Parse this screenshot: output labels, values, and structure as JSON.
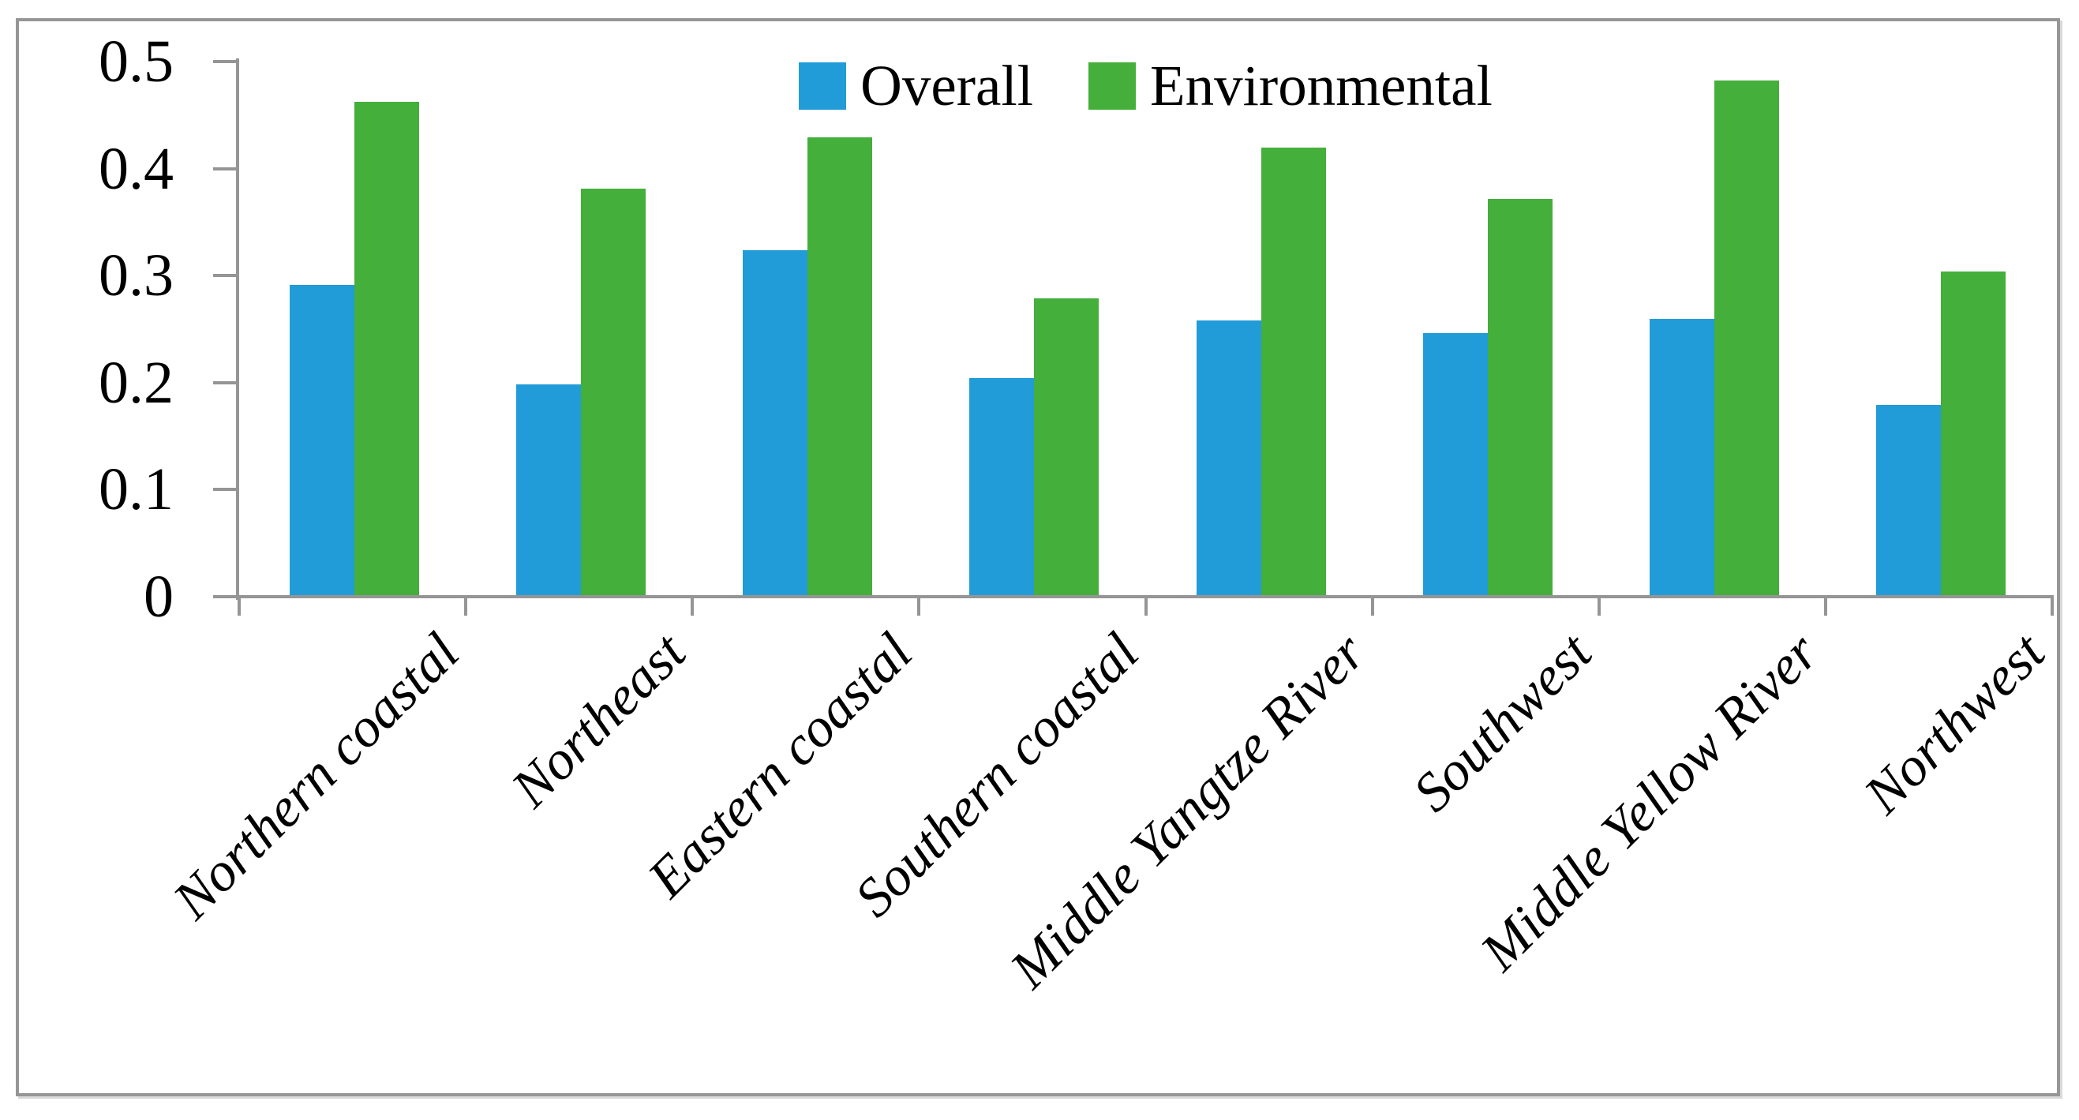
{
  "chart_data": {
    "type": "bar",
    "title": "",
    "xlabel": "",
    "ylabel": "",
    "categories": [
      "Northern coastal",
      "Northeast",
      "Eastern coastal",
      "Southern coastal",
      "Middle Yangtze River",
      "Southwest",
      "Middle Yellow River",
      "Northwest"
    ],
    "series": [
      {
        "name": "Overall",
        "color": "#219CD8",
        "values": [
          0.29,
          0.197,
          0.322,
          0.203,
          0.257,
          0.245,
          0.258,
          0.178
        ]
      },
      {
        "name": "Environmental",
        "color": "#44AF3B",
        "values": [
          0.461,
          0.38,
          0.428,
          0.277,
          0.418,
          0.37,
          0.481,
          0.302
        ]
      }
    ],
    "ylim": [
      0,
      0.5
    ],
    "yticks": [
      {
        "label": "0.5",
        "value": 0.5
      },
      {
        "label": "0.4",
        "value": 0.4
      },
      {
        "label": "0.3",
        "value": 0.3
      },
      {
        "label": "0.2",
        "value": 0.2
      },
      {
        "label": "0.1",
        "value": 0.1
      },
      {
        "label": "0",
        "value": 0.0
      }
    ],
    "grid": false,
    "legend_position": "top-center",
    "axis_color": "#959595",
    "frame_color": "#969696"
  }
}
